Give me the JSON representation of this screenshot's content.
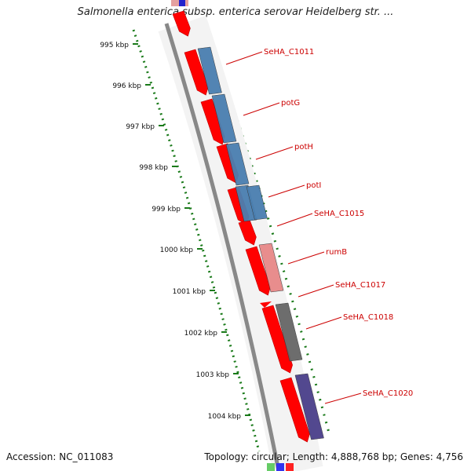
{
  "title": "Salmonella enterica subsp. enterica serovar Heidelberg str. ...",
  "accession": "Accession: NC_011083",
  "summary": "Topology: circular; Length: 4,888,768 bp; Genes: 4,756",
  "ruler": {
    "unit": "kbp",
    "ticks": [
      "995 kbp",
      "996 kbp",
      "997 kbp",
      "998 kbp",
      "999 kbp",
      "1000 kbp",
      "1001 kbp",
      "1002 kbp",
      "1003 kbp",
      "1004 kbp"
    ],
    "color": "#1a7a1a"
  },
  "genes": [
    {
      "label": "SeHA_C1011",
      "color": "#4a7fb0"
    },
    {
      "label": "potG",
      "color": "#4a7fb0"
    },
    {
      "label": "potH",
      "color": "#4a7fb0"
    },
    {
      "label": "potI",
      "color": "#4a7fb0"
    },
    {
      "label": "SeHA_C1015",
      "color": "#4a7fb0"
    },
    {
      "label": "rumB",
      "color": "#e88888"
    },
    {
      "label": "SeHA_C1017",
      "color": "#ff0000"
    },
    {
      "label": "SeHA_C1018",
      "color": "#666666"
    },
    {
      "label": "SeHA_C1020",
      "color": "#4a3f8a"
    }
  ],
  "colors": {
    "cds": "#ff0000",
    "label": "#cc0000",
    "backbone": "#888888"
  }
}
